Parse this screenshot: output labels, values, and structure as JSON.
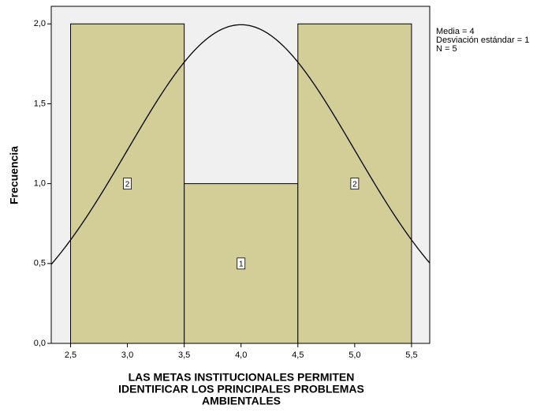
{
  "chart_data": {
    "type": "histogram",
    "bins": [
      2.5,
      3.5,
      4.5,
      5.5
    ],
    "values": [
      2,
      1,
      2
    ],
    "color": "#d3ce97",
    "background": "#f0f0f0",
    "xlim": [
      2.33,
      5.66
    ],
    "ylim": [
      0,
      2.11
    ],
    "xticks": [
      {
        "value": 2.5,
        "label": "2,5"
      },
      {
        "value": 3.0,
        "label": "3,0"
      },
      {
        "value": 3.5,
        "label": "3,5"
      },
      {
        "value": 4.0,
        "label": "4,0"
      },
      {
        "value": 4.5,
        "label": "4,5"
      },
      {
        "value": 5.0,
        "label": "5,0"
      },
      {
        "value": 5.5,
        "label": "5,5"
      }
    ],
    "yticks": [
      {
        "value": 0,
        "label": "0,0"
      },
      {
        "value": 0.5,
        "label": "0,5"
      },
      {
        "value": 1.0,
        "label": "1,0"
      },
      {
        "value": 1.5,
        "label": "1,5"
      },
      {
        "value": 2.0,
        "label": "2,0"
      }
    ],
    "ylabel": "Frecuencia",
    "xlabel": [
      "LAS METAS INSTITUCIONALES PERMITEN",
      "IDENTIFICAR LOS PRINCIPALES PROBLEMAS",
      "AMBIENTALES"
    ],
    "annotations": [
      "Media = 4",
      "Desviación estándar = 1",
      "N = 5"
    ],
    "curve": {
      "mean": 4,
      "sd": 1,
      "n": 5
    }
  }
}
